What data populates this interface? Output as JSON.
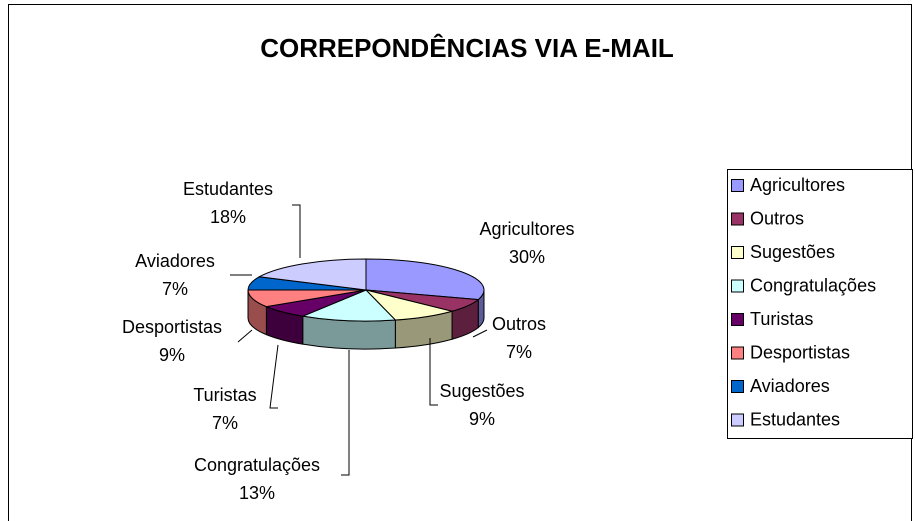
{
  "chart_data": {
    "type": "pie3d",
    "title": "CORREPONDÊNCIAS VIA E-MAIL",
    "categories": [
      "Agricultores",
      "Outros",
      "Sugestões",
      "Congratulações",
      "Turistas",
      "Desportistas",
      "Aviadores",
      "Estudantes"
    ],
    "values": [
      30,
      7,
      9,
      13,
      7,
      9,
      7,
      18
    ],
    "value_labels": [
      "30%",
      "7%",
      "9%",
      "13%",
      "7%",
      "9%",
      "7%",
      "18%"
    ],
    "colors": [
      "#9999ff",
      "#993366",
      "#ffffcc",
      "#ccffff",
      "#660066",
      "#ff8080",
      "#0066cc",
      "#ccccff"
    ],
    "legend": "right"
  }
}
